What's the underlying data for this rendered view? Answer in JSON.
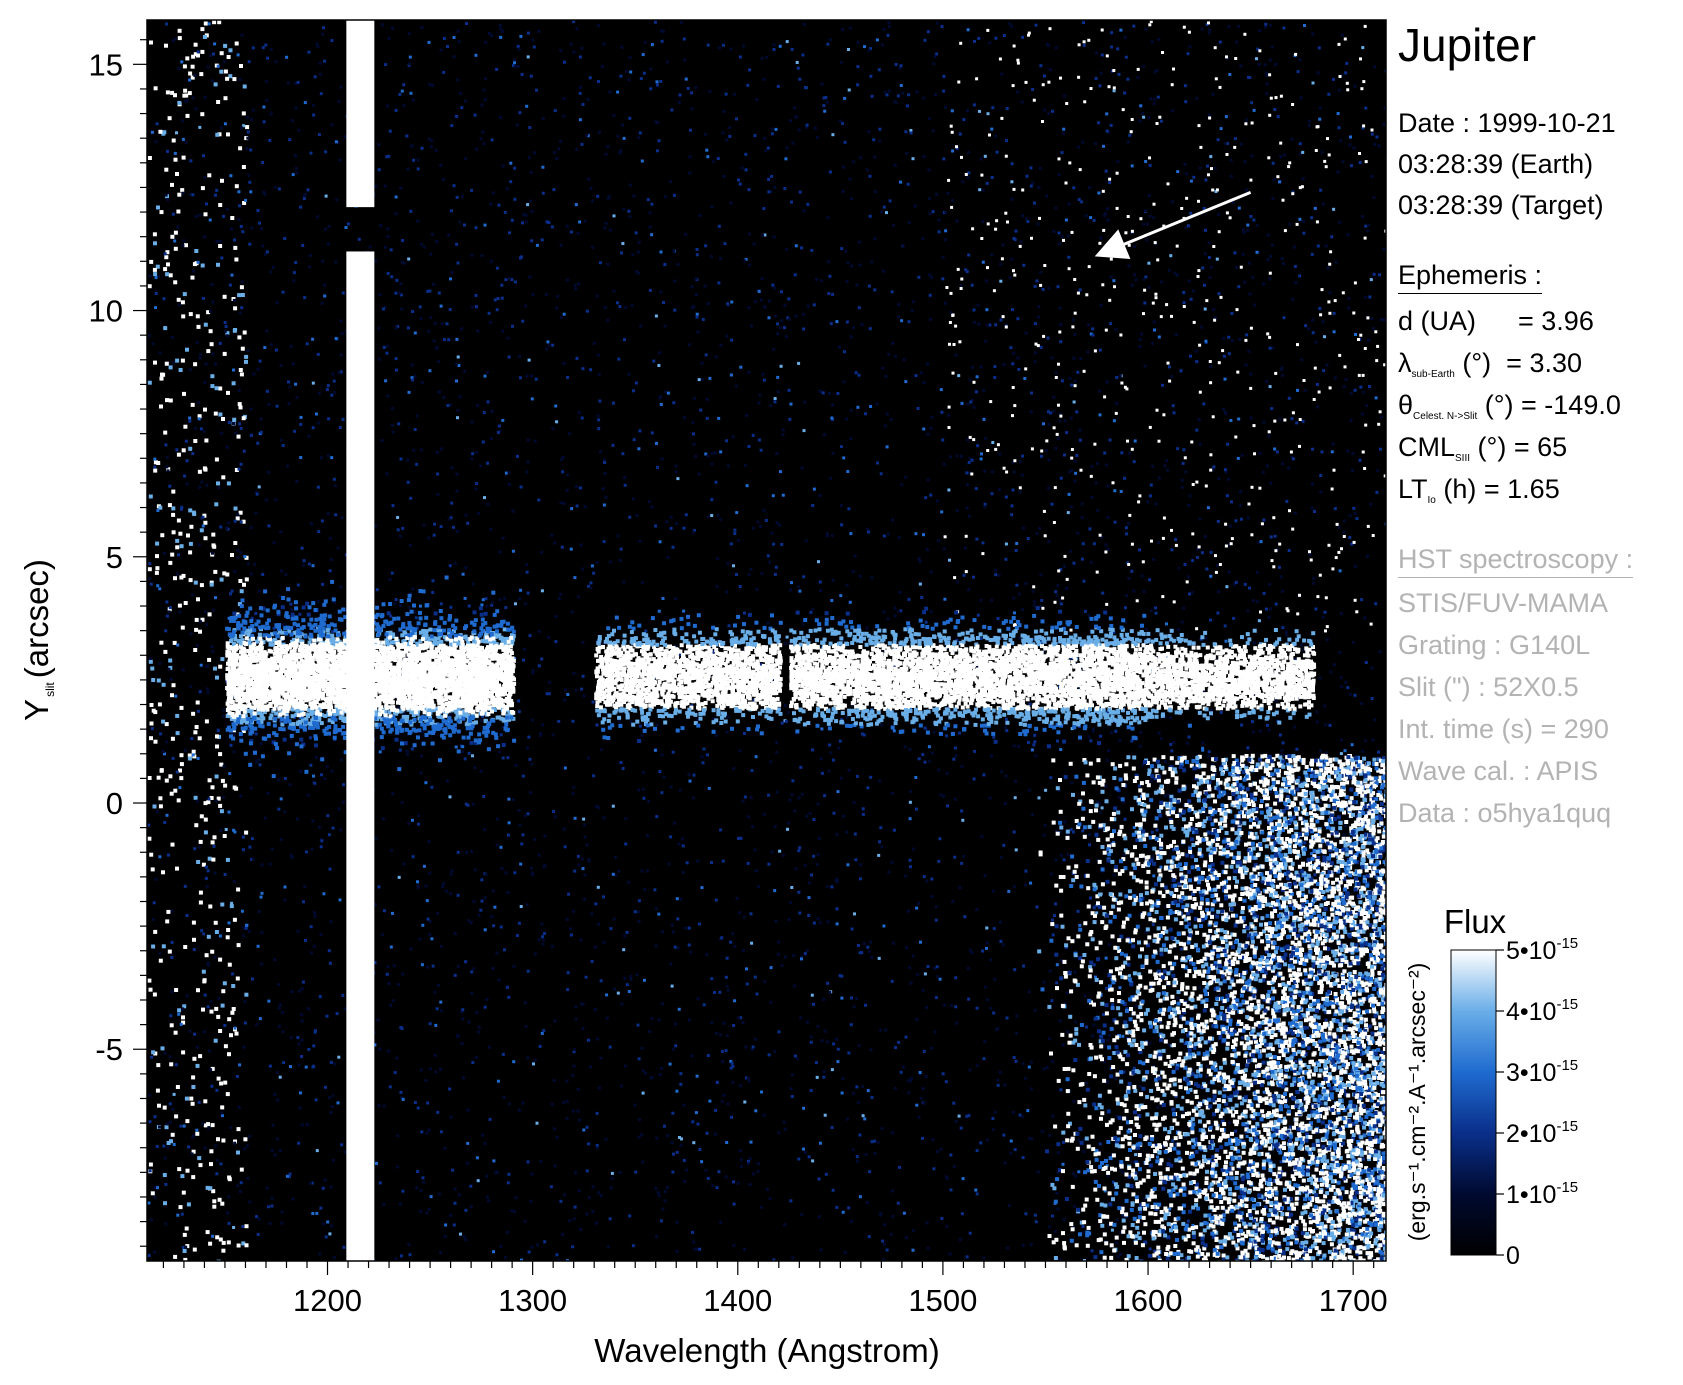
{
  "chart_data": {
    "type": "heatmap",
    "title": "Jupiter",
    "xlabel": "Wavelength (Angstrom)",
    "ylabel_main": "Y",
    "ylabel_sub": "slit",
    "ylabel_unit": "(arcsec)",
    "xlim": [
      1112,
      1716
    ],
    "ylim": [
      -9.3,
      15.9
    ],
    "x_ticks": [
      1200,
      1300,
      1400,
      1500,
      1600,
      1700
    ],
    "y_ticks": [
      15,
      10,
      5,
      0,
      -5
    ],
    "y_tick_labels": [
      "15",
      "10",
      "5",
      "0",
      "-5"
    ],
    "grid": false,
    "features": {
      "lyman_alpha_slit_wavelength": 1216,
      "lyman_alpha_gap_y": [
        11.2,
        12.1
      ],
      "emission_band_y_center": 2.6,
      "emission_band_x_range": [
        1150,
        1680
      ],
      "noisy_region_start_wavelength": 1545,
      "left_noise_end_wavelength": 1155
    },
    "arrow": {
      "from": [
        1650,
        12.4
      ],
      "to": [
        1574,
        11.1
      ]
    },
    "colorbar": {
      "title": "Flux",
      "unit_label": "(erg.s⁻¹.cm⁻².A⁻¹.arcsec⁻²)",
      "range": [
        0,
        5e-15
      ],
      "ticks": [
        0,
        1e-15,
        2e-15,
        3e-15,
        4e-15,
        5e-15
      ],
      "tick_labels": [
        "0",
        "1•10",
        "2•10",
        "3•10",
        "4•10",
        "5•10"
      ],
      "tick_exponent": "-15",
      "colors": [
        "#000000",
        "#000a30",
        "#0a2f8a",
        "#1f6bd0",
        "#6aaee8",
        "#ffffff"
      ]
    }
  },
  "info": {
    "date_label": "Date : 1999-10-21",
    "earth_time": "03:28:39 (Earth)",
    "target_time": "03:28:39 (Target)",
    "ephemeris_heading": "Ephemeris :",
    "d_label": "d (UA)",
    "d_value": "= 3.96",
    "lambda_symbol": "λ",
    "lambda_sub": "sub-Earth",
    "lambda_unit": "(°)",
    "lambda_value": "= 3.30",
    "theta_symbol": "θ",
    "theta_sub": "Celest. N->Slit",
    "theta_unit": "(°)",
    "theta_value": "= -149.0",
    "cml_symbol": "CML",
    "cml_sub": "SIII",
    "cml_unit": "(°)",
    "cml_value": "= 65",
    "lt_symbol": "LT",
    "lt_sub": "Io",
    "lt_unit": "(h)",
    "lt_value": "= 1.65",
    "hst_heading": "HST spectroscopy :",
    "instrument": "STIS/FUV-MAMA",
    "grating": "Grating : G140L",
    "slit": "Slit (\") : 52X0.5",
    "int_time": "Int. time (s) = 290",
    "wave_cal": "Wave cal. : APIS",
    "dataset": "Data : o5hya1quq"
  }
}
